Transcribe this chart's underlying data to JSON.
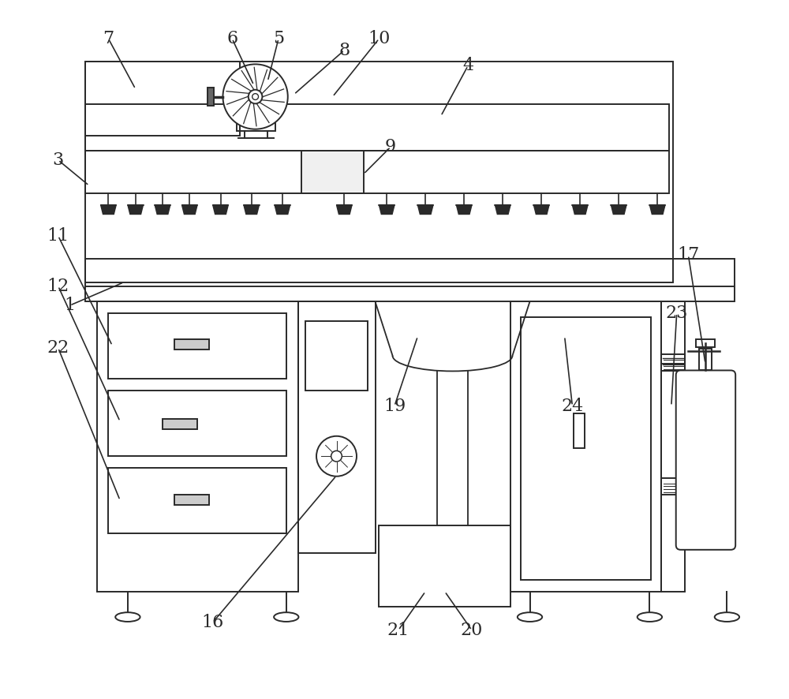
{
  "bg_color": "#ffffff",
  "line_color": "#2a2a2a",
  "line_width": 1.4,
  "fig_width": 10.0,
  "fig_height": 8.86
}
